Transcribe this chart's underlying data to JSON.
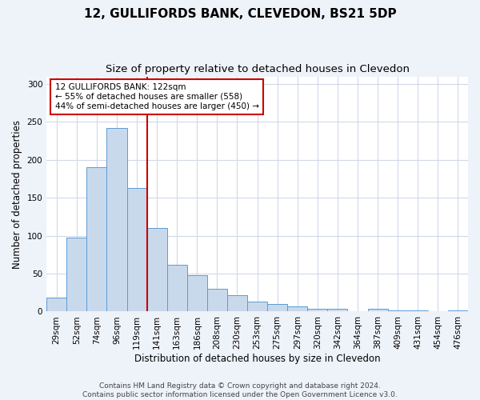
{
  "title1": "12, GULLIFORDS BANK, CLEVEDON, BS21 5DP",
  "title2": "Size of property relative to detached houses in Clevedon",
  "xlabel": "Distribution of detached houses by size in Clevedon",
  "ylabel": "Number of detached properties",
  "categories": [
    "29sqm",
    "52sqm",
    "74sqm",
    "96sqm",
    "119sqm",
    "141sqm",
    "163sqm",
    "186sqm",
    "208sqm",
    "230sqm",
    "253sqm",
    "275sqm",
    "297sqm",
    "320sqm",
    "342sqm",
    "364sqm",
    "387sqm",
    "409sqm",
    "431sqm",
    "454sqm",
    "476sqm"
  ],
  "values": [
    18,
    98,
    190,
    242,
    163,
    110,
    62,
    48,
    30,
    22,
    13,
    10,
    7,
    4,
    4,
    0,
    4,
    2,
    2,
    0,
    2
  ],
  "bar_color": "#c9d9ec",
  "bar_edge_color": "#5b9bd5",
  "vline_x": 4.5,
  "vline_color": "#cc0000",
  "annotation_text": "12 GULLIFORDS BANK: 122sqm\n← 55% of detached houses are smaller (558)\n44% of semi-detached houses are larger (450) →",
  "annotation_box_color": "#ffffff",
  "annotation_box_edge_color": "#cc0000",
  "ylim": [
    0,
    310
  ],
  "yticks": [
    0,
    50,
    100,
    150,
    200,
    250,
    300
  ],
  "footer_text": "Contains HM Land Registry data © Crown copyright and database right 2024.\nContains public sector information licensed under the Open Government Licence v3.0.",
  "background_color": "#eef2f9",
  "plot_background_color": "#ffffff",
  "grid_color": "#d0d8e8",
  "title_fontsize": 11,
  "subtitle_fontsize": 9.5,
  "tick_fontsize": 7.5,
  "label_fontsize": 8.5,
  "annotation_fontsize": 7.5,
  "footer_fontsize": 6.5
}
